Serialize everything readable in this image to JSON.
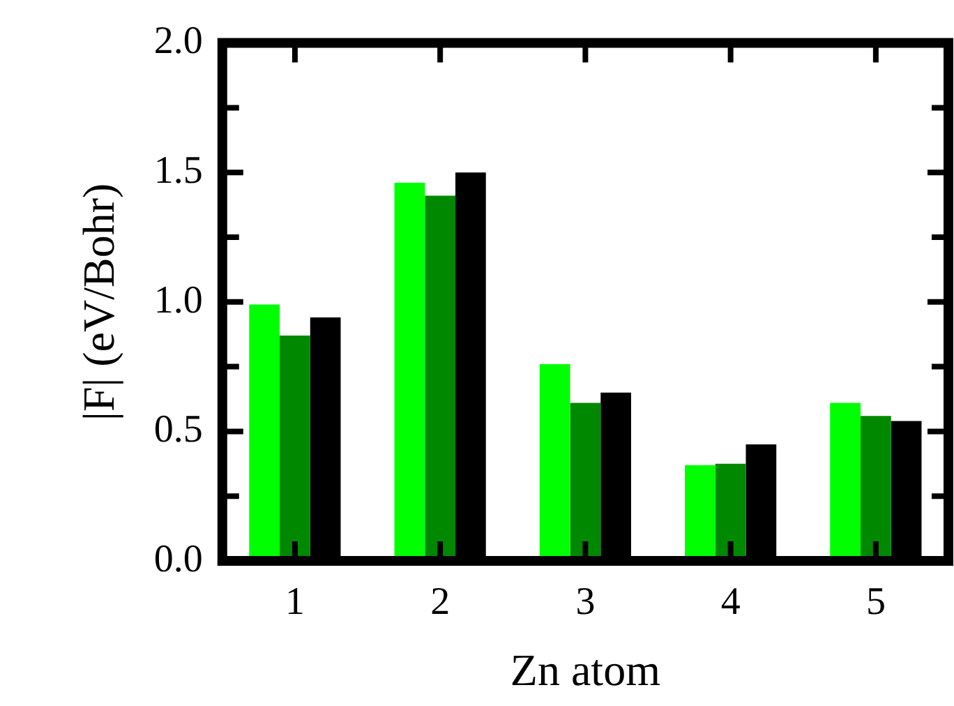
{
  "chart_data": {
    "type": "bar",
    "xlabel": "Zn atom",
    "ylabel": "|F| (eV/Bohr)",
    "categories": [
      "1",
      "2",
      "3",
      "4",
      "5"
    ],
    "series": [
      {
        "color": "#00ff00",
        "values": [
          0.99,
          1.46,
          0.76,
          0.37,
          0.61
        ]
      },
      {
        "color": "#008800",
        "values": [
          0.87,
          1.41,
          0.61,
          0.375,
          0.56
        ]
      },
      {
        "color": "#000000",
        "values": [
          0.94,
          1.5,
          0.65,
          0.45,
          0.54
        ]
      }
    ],
    "ylim": [
      0,
      2
    ],
    "yticks": [
      {
        "value": 0,
        "label": "0.0"
      },
      {
        "value": 0.25,
        "label": null
      },
      0.5,
      {
        "value": 0.75,
        "label": null
      },
      {
        "value": 1,
        "label": "1.0"
      },
      {
        "value": 1.25,
        "label": null
      },
      1.5,
      {
        "value": 1.75,
        "label": null
      },
      {
        "value": 2,
        "label": "2.0"
      }
    ],
    "grid": false,
    "legend": false
  }
}
